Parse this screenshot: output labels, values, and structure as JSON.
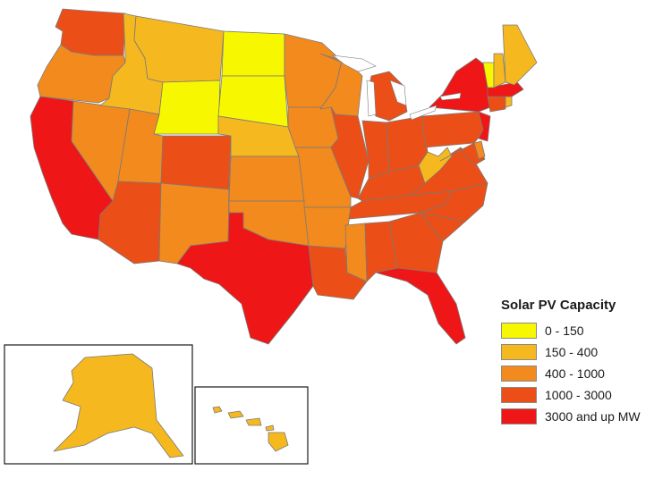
{
  "legend": {
    "title": "Solar PV Capacity",
    "classes": [
      {
        "label": "0 - 150",
        "color": "#f7f700"
      },
      {
        "label": "150 - 400",
        "color": "#f5b81f"
      },
      {
        "label": "400 - 1000",
        "color": "#f28a1e"
      },
      {
        "label": "1000 - 3000",
        "color": "#eb4f17"
      },
      {
        "label": "3000 and up MW",
        "color": "#ee1616"
      }
    ]
  },
  "states": [
    {
      "state": "Washington",
      "class": 3
    },
    {
      "state": "Oregon",
      "class": 2
    },
    {
      "state": "California",
      "class": 4
    },
    {
      "state": "Nevada",
      "class": 2
    },
    {
      "state": "Idaho",
      "class": 1
    },
    {
      "state": "Montana",
      "class": 1
    },
    {
      "state": "Wyoming",
      "class": 0
    },
    {
      "state": "Utah",
      "class": 2
    },
    {
      "state": "Arizona",
      "class": 3
    },
    {
      "state": "Colorado",
      "class": 3
    },
    {
      "state": "New Mexico",
      "class": 2
    },
    {
      "state": "North Dakota",
      "class": 0
    },
    {
      "state": "South Dakota",
      "class": 0
    },
    {
      "state": "Nebraska",
      "class": 1
    },
    {
      "state": "Kansas",
      "class": 2
    },
    {
      "state": "Oklahoma",
      "class": 2
    },
    {
      "state": "Texas",
      "class": 4
    },
    {
      "state": "Minnesota",
      "class": 2
    },
    {
      "state": "Iowa",
      "class": 2
    },
    {
      "state": "Missouri",
      "class": 2
    },
    {
      "state": "Arkansas",
      "class": 2
    },
    {
      "state": "Louisiana",
      "class": 3
    },
    {
      "state": "Wisconsin",
      "class": 2
    },
    {
      "state": "Illinois",
      "class": 3
    },
    {
      "state": "Michigan",
      "class": 3
    },
    {
      "state": "Indiana",
      "class": 3
    },
    {
      "state": "Ohio",
      "class": 3
    },
    {
      "state": "Kentucky",
      "class": 3
    },
    {
      "state": "Tennessee",
      "class": 3
    },
    {
      "state": "Mississippi",
      "class": 2
    },
    {
      "state": "Alabama",
      "class": 3
    },
    {
      "state": "Georgia",
      "class": 3
    },
    {
      "state": "Florida",
      "class": 4
    },
    {
      "state": "South Carolina",
      "class": 3
    },
    {
      "state": "North Carolina",
      "class": 3
    },
    {
      "state": "Virginia",
      "class": 3
    },
    {
      "state": "West Virginia",
      "class": 1
    },
    {
      "state": "Pennsylvania",
      "class": 3
    },
    {
      "state": "New York",
      "class": 4
    },
    {
      "state": "Maryland",
      "class": 3
    },
    {
      "state": "Delaware",
      "class": 2
    },
    {
      "state": "New Jersey",
      "class": 4
    },
    {
      "state": "Connecticut",
      "class": 3
    },
    {
      "state": "Rhode Island",
      "class": 1
    },
    {
      "state": "Massachusetts",
      "class": 4
    },
    {
      "state": "Vermont",
      "class": 0
    },
    {
      "state": "New Hampshire",
      "class": 1
    },
    {
      "state": "Maine",
      "class": 1
    },
    {
      "state": "Alaska",
      "class": 1
    },
    {
      "state": "Hawaii",
      "class": 1
    }
  ]
}
